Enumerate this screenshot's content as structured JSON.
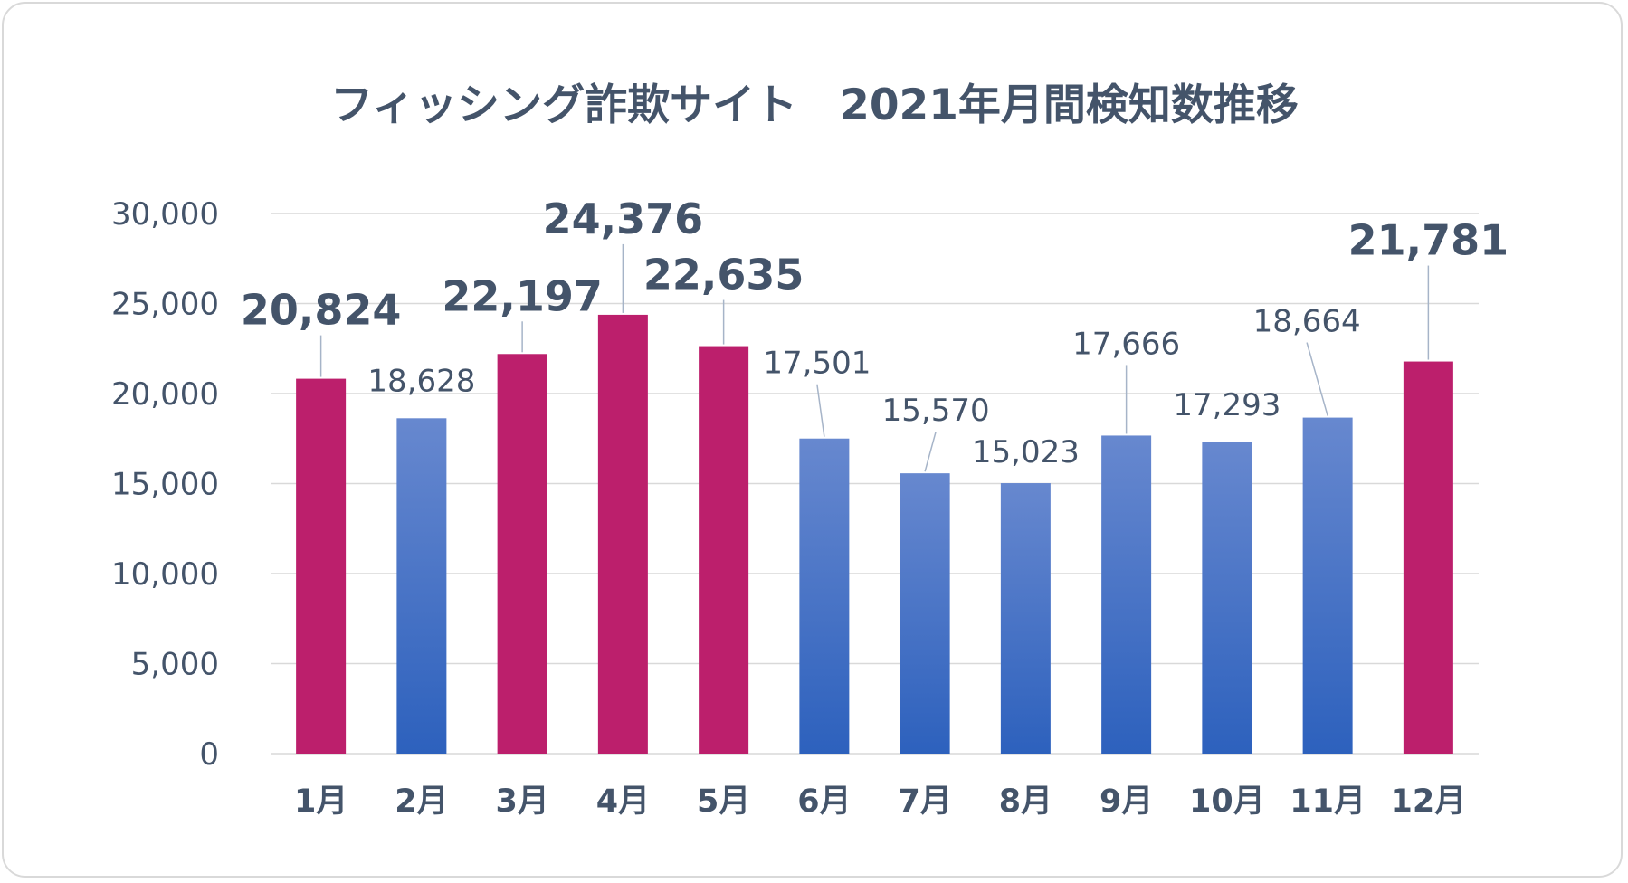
{
  "chart_data": {
    "type": "bar",
    "title": "フィッシング詐欺サイト　2021年月間検知数推移",
    "categories": [
      "1月",
      "2月",
      "3月",
      "4月",
      "5月",
      "6月",
      "7月",
      "8月",
      "9月",
      "10月",
      "11月",
      "12月"
    ],
    "values": [
      20824,
      18628,
      22197,
      24376,
      22635,
      17501,
      15570,
      15023,
      17666,
      17293,
      18664,
      21781
    ],
    "data_labels": [
      "20,824",
      "18,628",
      "22,197",
      "24,376",
      "22,635",
      "17,501",
      "15,570",
      "15,023",
      "17,666",
      "17,293",
      "18,664",
      "21,781"
    ],
    "highlighted": [
      true,
      false,
      true,
      true,
      true,
      false,
      false,
      false,
      false,
      false,
      false,
      true
    ],
    "ylim": [
      0,
      30000
    ],
    "yticks": [
      "0",
      "5,000",
      "10,000",
      "15,000",
      "20,000",
      "25,000",
      "30,000"
    ],
    "xlabel": "",
    "ylabel": "",
    "grid": true,
    "legend": "none",
    "colors": {
      "highlight_bar": "#bc1f6c",
      "normal_bar_top": "#6788cf",
      "normal_bar_bottom": "#2d61bd",
      "highlight_label": "#c00000",
      "text": "#44546a",
      "grid": "#d9d9d9",
      "leader_line": "#a6b4c8"
    }
  }
}
